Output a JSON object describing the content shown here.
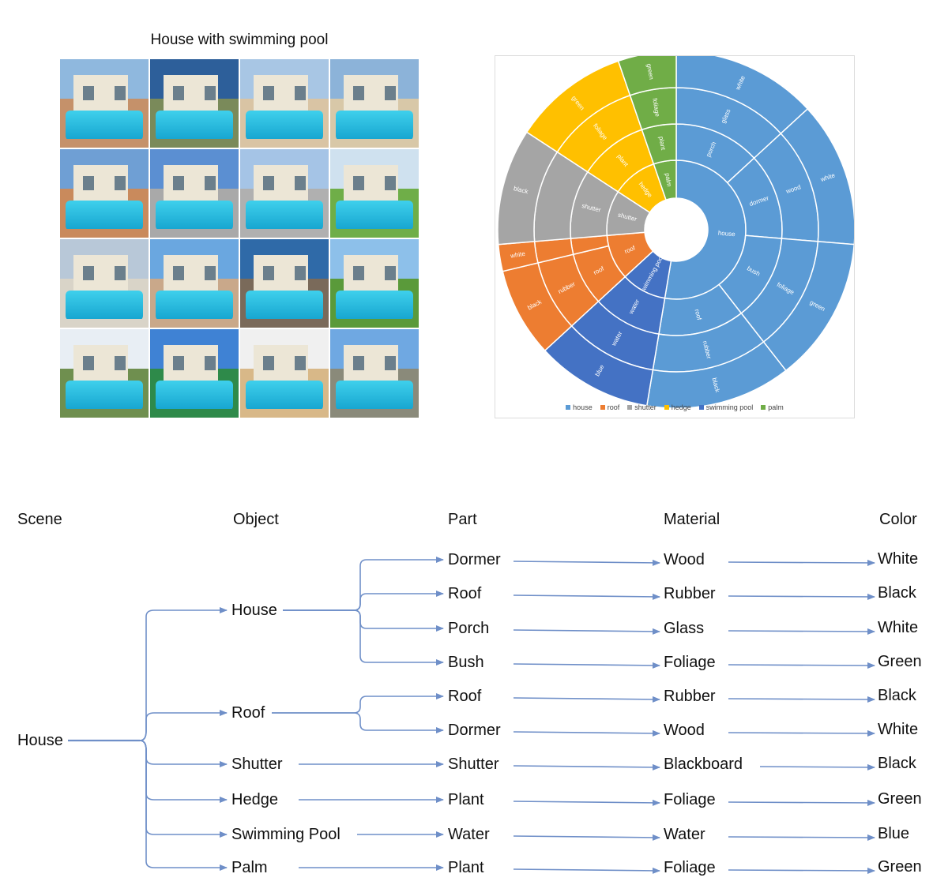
{
  "grid_title": "House with swimming pool",
  "photos": [
    {
      "sky": "#8fb8de",
      "deck": "#c5916a"
    },
    {
      "sky": "#2d5f9a",
      "deck": "#7a8a5a"
    },
    {
      "sky": "#a8c6e4",
      "deck": "#d9c4a4"
    },
    {
      "sky": "#8cb3d9",
      "deck": "#d8c8a8"
    },
    {
      "sky": "#6f9fd4",
      "deck": "#c98a5c"
    },
    {
      "sky": "#5b8fd2",
      "deck": "#a9a9a9"
    },
    {
      "sky": "#a5c4e6",
      "deck": "#b0b0b0"
    },
    {
      "sky": "#cfe1ef",
      "deck": "#6fae48"
    },
    {
      "sky": "#b8c8d8",
      "deck": "#d9d4c8"
    },
    {
      "sky": "#6aa7e0",
      "deck": "#c9a88a"
    },
    {
      "sky": "#2f6aa8",
      "deck": "#7a6a5a"
    },
    {
      "sky": "#8dc0ea",
      "deck": "#5a9a3a"
    },
    {
      "sky": "#e8eef4",
      "deck": "#6f8f4f"
    },
    {
      "sky": "#3f82d4",
      "deck": "#2e8a4a"
    },
    {
      "sky": "#f0f0f0",
      "deck": "#d8b888"
    },
    {
      "sky": "#6fa8e2",
      "deck": "#8a8a7a"
    }
  ],
  "chart_data": {
    "type": "sunburst",
    "colors": {
      "house": "#5b9bd5",
      "roof": "#ed7d31",
      "shutter": "#a5a5a5",
      "hedge": "#ffc000",
      "swimming pool": "#4472c4",
      "palm": "#70ad47"
    },
    "legend": [
      "house",
      "roof",
      "shutter",
      "hedge",
      "swimming pool",
      "palm"
    ],
    "data": [
      {
        "name": "house",
        "value": 5,
        "children": [
          {
            "name": "porch",
            "value": 1,
            "children": [
              {
                "name": "glass",
                "value": 1,
                "children": [
                  {
                    "name": "white",
                    "value": 1
                  }
                ]
              }
            ]
          },
          {
            "name": "dormer",
            "value": 1,
            "children": [
              {
                "name": "wood",
                "value": 1,
                "children": [
                  {
                    "name": "white",
                    "value": 1
                  }
                ]
              }
            ]
          },
          {
            "name": "bush",
            "value": 1,
            "children": [
              {
                "name": "foliage",
                "value": 1,
                "children": [
                  {
                    "name": "green",
                    "value": 1
                  }
                ]
              }
            ]
          },
          {
            "name": "roof",
            "value": 1,
            "children": [
              {
                "name": "rubber",
                "value": 1,
                "children": [
                  {
                    "name": "black",
                    "value": 1
                  }
                ]
              }
            ]
          }
        ]
      },
      {
        "name": "swimming pool",
        "value": 1,
        "children": [
          {
            "name": "water",
            "value": 1,
            "children": [
              {
                "name": "water",
                "value": 1,
                "children": [
                  {
                    "name": "blue",
                    "value": 1
                  }
                ]
              }
            ]
          }
        ]
      },
      {
        "name": "roof",
        "value": 1,
        "children": [
          {
            "name": "roof",
            "value": 1,
            "children": [
              {
                "name": "rubber",
                "value": 1,
                "children": [
                  {
                    "name": "black",
                    "value": 1
                  }
                ]
              }
            ]
          },
          {
            "name": "",
            "value": 0.3,
            "children": [
              {
                "name": "",
                "value": 0.3,
                "children": [
                  {
                    "name": "white",
                    "value": 0.3
                  }
                ]
              }
            ]
          }
        ]
      },
      {
        "name": "shutter",
        "value": 1,
        "children": [
          {
            "name": "shutter",
            "value": 1,
            "children": [
              {
                "name": "",
                "value": 1,
                "children": [
                  {
                    "name": "black",
                    "value": 1
                  }
                ]
              }
            ]
          }
        ]
      },
      {
        "name": "hedge",
        "value": 1,
        "children": [
          {
            "name": "plant",
            "value": 1,
            "children": [
              {
                "name": "foliage",
                "value": 1,
                "children": [
                  {
                    "name": "green",
                    "value": 1
                  }
                ]
              }
            ]
          }
        ]
      },
      {
        "name": "palm",
        "value": 0.5,
        "children": [
          {
            "name": "plant",
            "value": 0.5,
            "children": [
              {
                "name": "foliage",
                "value": 0.5,
                "children": [
                  {
                    "name": "green",
                    "value": 0.5
                  }
                ]
              }
            ]
          }
        ]
      }
    ]
  },
  "tree": {
    "headers": {
      "scene": "Scene",
      "object": "Object",
      "part": "Part",
      "material": "Material",
      "color": "Color"
    },
    "scene": "House",
    "objects": [
      {
        "name": "House",
        "parts": [
          {
            "part": "Dormer",
            "material": "Wood",
            "color": "White"
          },
          {
            "part": "Roof",
            "material": "Rubber",
            "color": "Black"
          },
          {
            "part": "Porch",
            "material": "Glass",
            "color": "White"
          },
          {
            "part": "Bush",
            "material": "Foliage",
            "color": "Green"
          }
        ]
      },
      {
        "name": "Roof",
        "parts": [
          {
            "part": "Roof",
            "material": "Rubber",
            "color": "Black"
          },
          {
            "part": "Dormer",
            "material": "Wood",
            "color": "White"
          }
        ]
      },
      {
        "name": "Shutter",
        "parts": [
          {
            "part": "Shutter",
            "material": "Blackboard",
            "color": "Black"
          }
        ]
      },
      {
        "name": "Hedge",
        "parts": [
          {
            "part": "Plant",
            "material": "Foliage",
            "color": "Green"
          }
        ]
      },
      {
        "name": "Swimming Pool",
        "parts": [
          {
            "part": "Water",
            "material": "Water",
            "color": "Blue"
          }
        ]
      },
      {
        "name": "Palm",
        "parts": [
          {
            "part": "Plant",
            "material": "Foliage",
            "color": "Green"
          }
        ]
      }
    ],
    "arrow_color": "#6f8fc8"
  }
}
